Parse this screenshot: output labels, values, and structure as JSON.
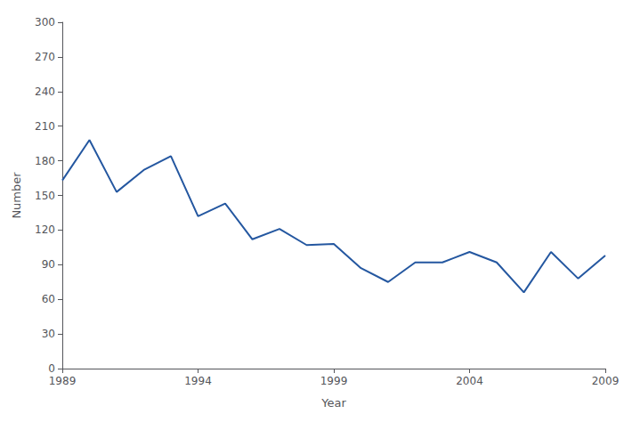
{
  "chart_data": {
    "type": "line",
    "x": [
      1989,
      1990,
      1991,
      1992,
      1993,
      1994,
      1995,
      1996,
      1997,
      1998,
      1999,
      2000,
      2001,
      2002,
      2003,
      2004,
      2005,
      2006,
      2007,
      2008,
      2009
    ],
    "values": [
      163,
      198,
      153,
      172,
      184,
      132,
      143,
      112,
      121,
      107,
      108,
      87,
      75,
      92,
      92,
      101,
      92,
      66,
      101,
      78,
      98
    ],
    "color": "#2457A0",
    "xlabel": "Year",
    "ylabel": "Number",
    "xlim": [
      1989,
      2009
    ],
    "ylim": [
      0,
      300
    ],
    "xticks": [
      1989,
      1994,
      1999,
      2004,
      2009
    ],
    "yticks": [
      0,
      30,
      60,
      90,
      120,
      150,
      180,
      210,
      240,
      270,
      300
    ],
    "grid": false
  }
}
